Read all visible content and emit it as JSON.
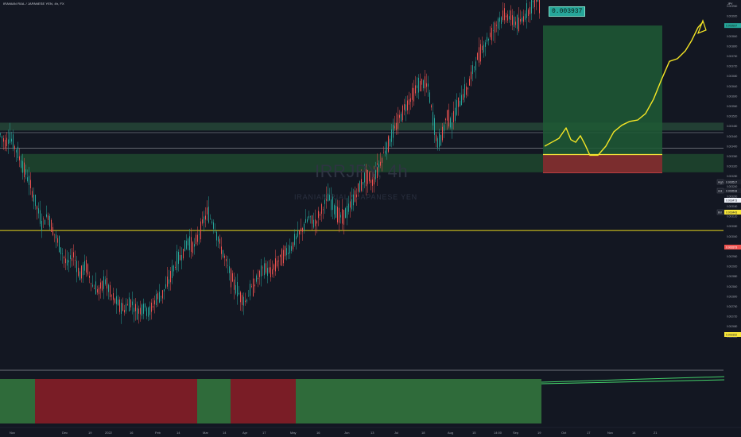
{
  "header": {
    "symbol_line": "IRANIAN RIAL / JAPANESE YEN, 4h, FX"
  },
  "watermark": {
    "ticker": "IRRJPY, 4h",
    "description": "IRANIAN RIAL / JAPANESE YEN"
  },
  "position": {
    "target_label": "0.003937"
  },
  "price_axis": {
    "unit": "JPY",
    "ticks": [
      "0.003960",
      "0.003920",
      "0.003880",
      "0.003840",
      "0.003800",
      "0.003760",
      "0.003720",
      "0.003680",
      "0.003640",
      "0.003600",
      "0.003560",
      "0.003520",
      "0.003480",
      "0.003440",
      "0.003400",
      "0.003360",
      "0.003320",
      "0.003280",
      "0.003240",
      "0.003200",
      "0.003160",
      "0.003120",
      "0.003080",
      "0.003040",
      "0.003000",
      "0.002960",
      "0.002920",
      "0.002880",
      "0.002840",
      "0.002800",
      "0.002760",
      "0.002720",
      "0.002680",
      "0.002640"
    ],
    "high_label": "High",
    "high_value": "0.003517",
    "ask_label": "Ask",
    "ask_value": "0.003518",
    "last_value": "0.003473",
    "bid_label": "Bid",
    "bid_value": "0.003443",
    "stop_value": "0.003373",
    "support_value": "0.003152",
    "target_value": "0.003937"
  },
  "time_axis": {
    "labels": [
      "Nov",
      "Dec",
      "19",
      "2022",
      "16",
      "Feb",
      "14",
      "Mar",
      "14",
      "Apr",
      "17",
      "May",
      "16",
      "Jun",
      "13",
      "Jul",
      "18",
      "Aug",
      "15",
      "14:00",
      "Sep",
      "19",
      "Oct",
      "17",
      "Nov",
      "14",
      "21"
    ]
  },
  "colors": {
    "background": "#131722",
    "candle_up": "#26a69a",
    "candle_down": "#ef5350",
    "profit_zone": "#1e5a35",
    "loss_zone": "#8c2a2f",
    "forecast_line": "#f5e625",
    "support_line": "#e8d71c",
    "indicator_green": "#2f6b3a",
    "indicator_red": "#7a1d26",
    "indicator_line": "#44d36b"
  },
  "chart_data": {
    "type": "candlestick",
    "symbol": "IRRJPY",
    "timeframe": "4h",
    "ylim": [
      0.00262,
      0.00398
    ],
    "grid": false,
    "horizontal_levels": [
      0.003517,
      0.003518,
      0.003152
    ],
    "zones": [
      {
        "kind": "resistance",
        "from": 0.003535,
        "to": 0.003565
      },
      {
        "kind": "support",
        "from": 0.003375,
        "to": 0.003445
      }
    ],
    "long_position": {
      "entry": 0.003443,
      "stop": 0.003373,
      "target": 0.003937
    },
    "price_path": [
      [
        0,
        0.00352
      ],
      [
        6,
        0.00349
      ],
      [
        12,
        0.00351
      ],
      [
        20,
        0.00346
      ],
      [
        28,
        0.0034
      ],
      [
        36,
        0.00334
      ],
      [
        44,
        0.00326
      ],
      [
        52,
        0.00318
      ],
      [
        60,
        0.00321
      ],
      [
        68,
        0.00314
      ],
      [
        76,
        0.00308
      ],
      [
        84,
        0.00302
      ],
      [
        92,
        0.00306
      ],
      [
        100,
        0.00298
      ],
      [
        108,
        0.00302
      ],
      [
        116,
        0.00294
      ],
      [
        124,
        0.00292
      ],
      [
        132,
        0.00296
      ],
      [
        140,
        0.0029
      ],
      [
        148,
        0.00287
      ],
      [
        156,
        0.00285
      ],
      [
        164,
        0.00288
      ],
      [
        172,
        0.00284
      ],
      [
        180,
        0.00286
      ],
      [
        188,
        0.00284
      ],
      [
        196,
        0.00289
      ],
      [
        204,
        0.00291
      ],
      [
        212,
        0.00296
      ],
      [
        220,
        0.00302
      ],
      [
        228,
        0.00306
      ],
      [
        236,
        0.00311
      ],
      [
        244,
        0.00309
      ],
      [
        252,
        0.00316
      ],
      [
        260,
        0.00322
      ],
      [
        268,
        0.00318
      ],
      [
        276,
        0.0031
      ],
      [
        284,
        0.00303
      ],
      [
        292,
        0.00296
      ],
      [
        300,
        0.00291
      ],
      [
        308,
        0.00288
      ],
      [
        316,
        0.00293
      ],
      [
        324,
        0.00297
      ],
      [
        332,
        0.00301
      ],
      [
        340,
        0.00299
      ],
      [
        348,
        0.00303
      ],
      [
        356,
        0.00306
      ],
      [
        364,
        0.00308
      ],
      [
        372,
        0.00312
      ],
      [
        380,
        0.00316
      ],
      [
        388,
        0.0032
      ],
      [
        396,
        0.00318
      ],
      [
        404,
        0.00323
      ],
      [
        412,
        0.00328
      ],
      [
        420,
        0.00324
      ],
      [
        428,
        0.0032
      ],
      [
        436,
        0.00322
      ],
      [
        444,
        0.00327
      ],
      [
        452,
        0.00332
      ],
      [
        460,
        0.00336
      ],
      [
        468,
        0.00334
      ],
      [
        476,
        0.0034
      ],
      [
        484,
        0.00346
      ],
      [
        492,
        0.00351
      ],
      [
        500,
        0.00357
      ],
      [
        508,
        0.00362
      ],
      [
        516,
        0.00366
      ],
      [
        524,
        0.0037
      ],
      [
        532,
        0.00372
      ],
      [
        538,
        0.0037
      ],
      [
        544,
        0.00358
      ],
      [
        550,
        0.00348
      ],
      [
        556,
        0.00352
      ],
      [
        562,
        0.0036
      ],
      [
        568,
        0.00356
      ],
      [
        574,
        0.00362
      ],
      [
        580,
        0.00366
      ],
      [
        588,
        0.0037
      ],
      [
        596,
        0.00378
      ],
      [
        604,
        0.00384
      ],
      [
        612,
        0.00388
      ],
      [
        620,
        0.00392
      ],
      [
        628,
        0.00396
      ],
      [
        636,
        0.00398
      ],
      [
        644,
        0.00396
      ],
      [
        652,
        0.00394
      ],
      [
        660,
        0.00398
      ],
      [
        668,
        0.00401
      ],
      [
        674,
        0.00404
      ],
      [
        680,
        0.00402
      ]
    ],
    "forecast_path": [
      [
        685,
        0.003475
      ],
      [
        694,
        0.00349
      ],
      [
        703,
        0.003505
      ],
      [
        712,
        0.003545
      ],
      [
        718,
        0.0035
      ],
      [
        724,
        0.00349
      ],
      [
        730,
        0.003515
      ],
      [
        736,
        0.00348
      ],
      [
        742,
        0.00344
      ],
      [
        752,
        0.00344
      ],
      [
        762,
        0.003475
      ],
      [
        772,
        0.00353
      ],
      [
        782,
        0.003555
      ],
      [
        792,
        0.00357
      ],
      [
        802,
        0.003575
      ],
      [
        812,
        0.0036
      ],
      [
        822,
        0.003655
      ],
      [
        832,
        0.00373
      ],
      [
        842,
        0.0038
      ],
      [
        852,
        0.00381
      ],
      [
        862,
        0.00384
      ],
      [
        870,
        0.00388
      ],
      [
        878,
        0.00393
      ],
      [
        884,
        0.00395
      ]
    ],
    "indicator": {
      "segments": [
        {
          "from": 0,
          "to": 44,
          "state": "bull"
        },
        {
          "from": 44,
          "to": 248,
          "state": "bear"
        },
        {
          "from": 248,
          "to": 290,
          "state": "bull"
        },
        {
          "from": 290,
          "to": 372,
          "state": "bear"
        },
        {
          "from": 372,
          "to": 681,
          "state": "bull"
        }
      ]
    }
  }
}
